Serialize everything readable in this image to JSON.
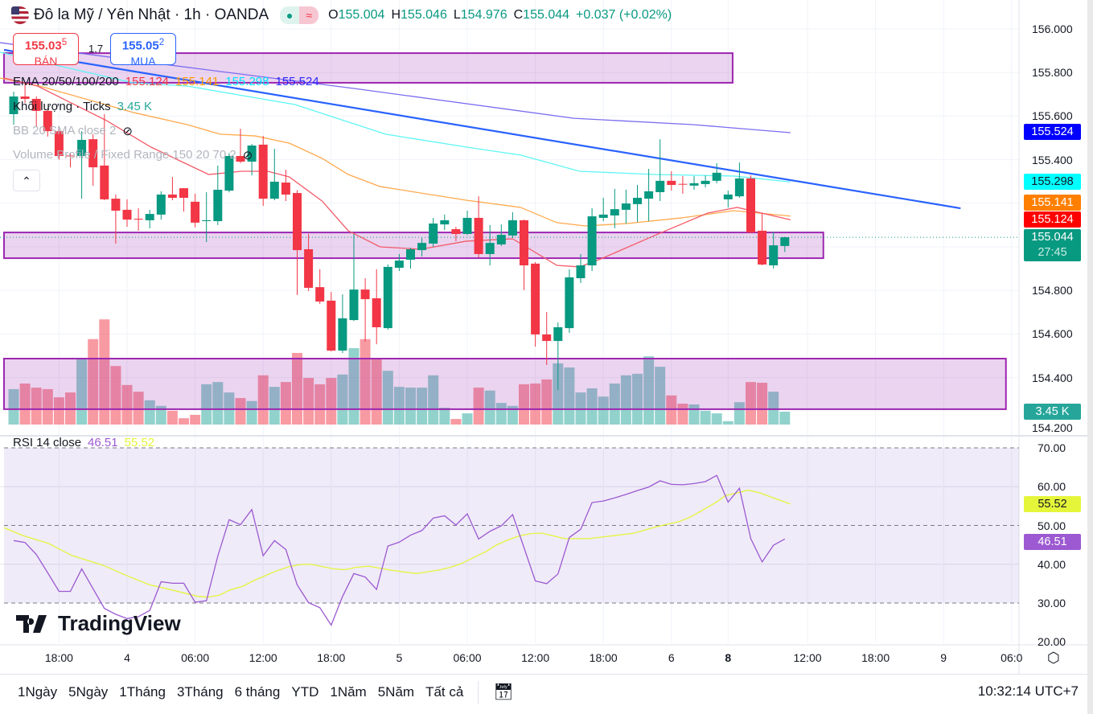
{
  "header": {
    "title": "Đô la Mỹ / Yên Nhật · 1h · OANDA",
    "open_label": "O",
    "open": "155.004",
    "high_label": "H",
    "high": "155.046",
    "low_label": "L",
    "low": "154.976",
    "close_label": "C",
    "close": "155.044",
    "change": "+0.037 (+0.02%)"
  },
  "trade": {
    "sell_price": "155.03",
    "sell_sup": "5",
    "sell_label": "BÁN",
    "spread": "1.7",
    "buy_price": "155.05",
    "buy_sup": "2",
    "buy_label": "MUA"
  },
  "legend": {
    "ema_label": "EMA 20/50/100/200",
    "ema20": "155.124",
    "ema50": "155.141",
    "ema100": "155.298",
    "ema200": "155.524",
    "volume_label": "Khối lượng · Ticks",
    "volume_value": "3.45 K",
    "bb_label": "BB 20 SMA close 2",
    "vp_label": "Volume Profile / Fixed Range 150 20 70 2",
    "rsi_label": "RSI 14 close",
    "rsi_value": "46.51",
    "rsi_ma_value": "55.52"
  },
  "colors": {
    "up": "#089981",
    "down": "#f23645",
    "ema20": "#f23645",
    "ema50": "#ff9800",
    "ema100": "#00ffff",
    "ema200": "#2a2aff",
    "trend": "#2962ff",
    "zone": "#9c27b0",
    "rsi": "#9c59d1",
    "rsi_ma": "#e5f53a"
  },
  "price_axis": {
    "labels": [
      "156.000",
      "155.800",
      "155.600",
      "155.400",
      "154.800",
      "154.600",
      "154.400",
      "154.200"
    ],
    "values": [
      156.0,
      155.8,
      155.6,
      155.4,
      154.8,
      154.6,
      154.4,
      154.2
    ]
  },
  "badges": {
    "ema200": "155.524",
    "ema100": "155.298",
    "ema50": "155.141",
    "ema20": "155.124",
    "last": "155.044",
    "countdown": "27:45",
    "volume": "3.45 K"
  },
  "rsi_axis": {
    "labels": [
      "70.00",
      "60.00",
      "50.00",
      "40.00",
      "30.00",
      "20.00"
    ],
    "badge_ma": "55.52",
    "badge_rsi": "46.51"
  },
  "time_axis": [
    {
      "label": "18:00",
      "i": 4
    },
    {
      "label": "4",
      "i": 10
    },
    {
      "label": "06:00",
      "i": 16
    },
    {
      "label": "12:00",
      "i": 22
    },
    {
      "label": "18:00",
      "i": 28
    },
    {
      "label": "5",
      "i": 34
    },
    {
      "label": "06:00",
      "i": 40
    },
    {
      "label": "12:00",
      "i": 46
    },
    {
      "label": "18:00",
      "i": 52
    },
    {
      "label": "6",
      "i": 58
    },
    {
      "label": "8",
      "i": 63,
      "bold": true
    },
    {
      "label": "12:00",
      "i": 70
    },
    {
      "label": "18:00",
      "i": 76
    },
    {
      "label": "9",
      "i": 82
    },
    {
      "label": "06:0",
      "i": 88
    }
  ],
  "bottom": {
    "ranges": [
      "1Ngày",
      "5Ngày",
      "1Tháng",
      "3Tháng",
      "6 tháng",
      "YTD",
      "1Năm",
      "5Năm",
      "Tất cả"
    ],
    "clock": "10:32:14 UTC+7"
  },
  "logo_text": "TradingView",
  "chart_data": {
    "type": "candlestick",
    "candles": [
      [
        155.609,
        155.712,
        155.561,
        155.69
      ],
      [
        155.69,
        155.75,
        155.66,
        155.679
      ],
      [
        155.679,
        155.69,
        155.553,
        155.624
      ],
      [
        155.624,
        155.63,
        155.506,
        155.531
      ],
      [
        155.531,
        155.54,
        155.4,
        155.417
      ],
      [
        155.419,
        155.43,
        155.365,
        155.417
      ],
      [
        155.417,
        155.531,
        155.221,
        155.491
      ],
      [
        155.494,
        155.517,
        155.28,
        155.365
      ],
      [
        155.373,
        155.609,
        155.214,
        155.218
      ],
      [
        155.221,
        155.24,
        155.015,
        155.166
      ],
      [
        155.17,
        155.218,
        155.092,
        155.125
      ],
      [
        155.129,
        155.177,
        155.074,
        155.125
      ],
      [
        155.122,
        155.17,
        155.085,
        155.151
      ],
      [
        155.148,
        155.255,
        155.125,
        155.24
      ],
      [
        155.24,
        155.321,
        155.214,
        155.225
      ],
      [
        155.269,
        155.27,
        155.162,
        155.225
      ],
      [
        155.207,
        155.244,
        155.089,
        155.111
      ],
      [
        155.118,
        155.251,
        155.022,
        155.122
      ],
      [
        155.118,
        155.373,
        155.1,
        155.262
      ],
      [
        155.258,
        155.43,
        155.25,
        155.417
      ],
      [
        155.417,
        155.542,
        155.384,
        155.391
      ],
      [
        155.391,
        155.472,
        155.328,
        155.465
      ],
      [
        155.469,
        155.509,
        155.188,
        155.221
      ],
      [
        155.221,
        155.45,
        155.214,
        155.299
      ],
      [
        155.295,
        155.354,
        155.21,
        155.24
      ],
      [
        155.247,
        155.26,
        154.779,
        154.985
      ],
      [
        154.989,
        155.059,
        154.797,
        154.812
      ],
      [
        154.815,
        154.897,
        154.738,
        154.749
      ],
      [
        154.753,
        154.793,
        154.52,
        154.524
      ],
      [
        154.524,
        154.782,
        154.513,
        154.672
      ],
      [
        154.664,
        155.059,
        154.66,
        154.804
      ],
      [
        154.804,
        154.856,
        154.565,
        154.76
      ],
      [
        154.764,
        154.897,
        154.553,
        154.631
      ],
      [
        154.627,
        154.919,
        154.62,
        154.908
      ],
      [
        154.904,
        154.967,
        154.889,
        154.937
      ],
      [
        154.941,
        154.996,
        154.9,
        154.989
      ],
      [
        154.985,
        155.041,
        154.956,
        155.018
      ],
      [
        155.015,
        155.133,
        155.0,
        155.107
      ],
      [
        155.103,
        155.148,
        155.077,
        155.122
      ],
      [
        155.081,
        155.092,
        155.026,
        155.059
      ],
      [
        155.059,
        155.166,
        155.055,
        155.133
      ],
      [
        155.133,
        155.232,
        154.952,
        154.967
      ],
      [
        154.967,
        155.1,
        154.915,
        155.018
      ],
      [
        155.011,
        155.103,
        155.004,
        155.055
      ],
      [
        155.052,
        155.159,
        155.041,
        155.122
      ],
      [
        155.122,
        155.125,
        154.801,
        154.915
      ],
      [
        154.923,
        154.93,
        154.542,
        154.598
      ],
      [
        154.598,
        154.701,
        154.458,
        154.568
      ],
      [
        154.568,
        154.653,
        154.343,
        154.631
      ],
      [
        154.627,
        154.897,
        154.605,
        154.86
      ],
      [
        154.856,
        154.967,
        154.834,
        154.915
      ],
      [
        154.915,
        155.177,
        154.889,
        155.14
      ],
      [
        155.133,
        155.225,
        155.118,
        155.148
      ],
      [
        155.144,
        155.266,
        155.085,
        155.173
      ],
      [
        155.17,
        155.262,
        155.107,
        155.199
      ],
      [
        155.196,
        155.284,
        155.114,
        155.225
      ],
      [
        155.221,
        155.358,
        155.118,
        155.255
      ],
      [
        155.251,
        155.494,
        155.21,
        155.303
      ],
      [
        155.303,
        155.347,
        155.258,
        155.284
      ],
      [
        155.289,
        155.325,
        155.244,
        155.287
      ],
      [
        155.281,
        155.325,
        155.262,
        155.292
      ],
      [
        155.288,
        155.328,
        155.273,
        155.303
      ],
      [
        155.303,
        155.384,
        155.292,
        155.34
      ],
      [
        155.218,
        155.258,
        155.181,
        155.24
      ],
      [
        155.232,
        155.387,
        155.225,
        155.314
      ],
      [
        155.314,
        155.328,
        155.063,
        155.066
      ],
      [
        155.074,
        155.155,
        154.915,
        154.919
      ],
      [
        154.915,
        155.07,
        154.9,
        155.007
      ],
      [
        155.004,
        155.046,
        154.976,
        155.044
      ]
    ],
    "volume_k": [
      9.5,
      11.0,
      9.9,
      9.5,
      7.3,
      8.6,
      17.5,
      22.9,
      28.2,
      15.7,
      10.6,
      8.8,
      6.5,
      5.0,
      3.7,
      1.7,
      2.6,
      10.8,
      11.4,
      8.6,
      7.1,
      6.3,
      13.2,
      10.1,
      11.4,
      19.2,
      12.5,
      10.8,
      12.5,
      13.4,
      20.5,
      22.9,
      17.5,
      14.4,
      10.1,
      9.9,
      9.9,
      13.2,
      4.5,
      1.5,
      3.0,
      9.9,
      9.1,
      5.8,
      5.0,
      10.8,
      11.0,
      12.1,
      16.4,
      15.3,
      8.6,
      9.7,
      7.5,
      11.0,
      13.2,
      13.6,
      18.3,
      15.5,
      7.8,
      5.6,
      5.4,
      3.7,
      3.0,
      0.9,
      6.0,
      11.4,
      11.2,
      8.8,
      3.45
    ],
    "ema20": [
      [
        -0.85,
        155.775
      ],
      [
        2.1,
        155.738
      ],
      [
        8.2,
        155.579
      ],
      [
        12.1,
        155.458
      ],
      [
        17.2,
        155.332
      ],
      [
        20.1,
        155.347
      ],
      [
        22.4,
        155.347
      ],
      [
        24.3,
        155.321
      ],
      [
        27.2,
        155.21
      ],
      [
        29.5,
        155.074
      ],
      [
        32.3,
        155.0
      ],
      [
        35.9,
        154.989
      ],
      [
        39.9,
        155.026
      ],
      [
        44,
        155.037
      ],
      [
        47.9,
        154.915
      ],
      [
        49.9,
        154.908
      ],
      [
        51.8,
        154.945
      ],
      [
        56.5,
        155.052
      ],
      [
        61.2,
        155.155
      ],
      [
        63.8,
        155.181
      ],
      [
        68.5,
        155.124
      ]
    ],
    "ema50": [
      [
        -1.2,
        155.775
      ],
      [
        2.3,
        155.738
      ],
      [
        10.6,
        155.616
      ],
      [
        15.3,
        155.561
      ],
      [
        18.2,
        155.517
      ],
      [
        21.3,
        155.509
      ],
      [
        24.3,
        155.476
      ],
      [
        27.2,
        155.406
      ],
      [
        29.5,
        155.332
      ],
      [
        32.3,
        155.277
      ],
      [
        39.9,
        155.214
      ],
      [
        44.7,
        155.181
      ],
      [
        47.9,
        155.111
      ],
      [
        50.4,
        155.096
      ],
      [
        54.1,
        155.107
      ],
      [
        58.9,
        155.133
      ],
      [
        63.5,
        155.166
      ],
      [
        68.5,
        155.141
      ]
    ],
    "ema100": [
      [
        -1.2,
        155.893
      ],
      [
        10.5,
        155.753
      ],
      [
        15.3,
        155.738
      ],
      [
        24.8,
        155.653
      ],
      [
        32.8,
        155.517
      ],
      [
        39.9,
        155.458
      ],
      [
        44.7,
        155.421
      ],
      [
        49.9,
        155.347
      ],
      [
        56.5,
        155.332
      ],
      [
        63.5,
        155.325
      ],
      [
        68.5,
        155.298
      ]
    ],
    "ema200": [
      [
        -1.2,
        155.937
      ],
      [
        14.4,
        155.83
      ],
      [
        30.0,
        155.727
      ],
      [
        49.4,
        155.59
      ],
      [
        59.9,
        155.561
      ],
      [
        68.5,
        155.524
      ]
    ],
    "trendline": [
      [
        -0.85,
        155.904
      ],
      [
        83.5,
        155.177
      ]
    ],
    "zones": [
      {
        "top": 155.889,
        "bottom": 155.753,
        "end": 63.4
      },
      {
        "top": 155.066,
        "bottom": 154.948,
        "end": 71.4
      },
      {
        "top": 154.487,
        "bottom": 154.255,
        "end": 87.5
      }
    ],
    "rsi": [
      46.1,
      45.6,
      42.5,
      37.8,
      33.0,
      33.0,
      38.8,
      33.7,
      28.6,
      27.1,
      26.0,
      26.5,
      28.1,
      35.5,
      35.1,
      35.1,
      30.2,
      30.6,
      42.1,
      51.5,
      50.2,
      54.1,
      42.2,
      46.1,
      43.8,
      34.7,
      30.1,
      28.8,
      24.3,
      31.7,
      37.6,
      36.7,
      33.5,
      44.7,
      45.7,
      47.5,
      48.7,
      51.9,
      52.5,
      50.1,
      53.0,
      46.5,
      48.5,
      49.9,
      52.8,
      44.3,
      35.7,
      35.0,
      37.5,
      46.9,
      49.0,
      55.9,
      56.3,
      57.1,
      58.0,
      59.0,
      59.9,
      61.5,
      60.6,
      60.5,
      60.8,
      61.3,
      62.9,
      56.0,
      59.6,
      46.6,
      40.6,
      44.9,
      46.51
    ],
    "rsi_ma": [
      [
        -0.85,
        49.4
      ],
      [
        0.9,
        47.3
      ],
      [
        3.05,
        45.4
      ],
      [
        5.1,
        42.3
      ],
      [
        8.0,
        39.6
      ],
      [
        10.1,
        36.9
      ],
      [
        12.0,
        34.7
      ],
      [
        14.2,
        33.2
      ],
      [
        16.1,
        31.8
      ],
      [
        17.1,
        31.5
      ],
      [
        18.1,
        32.0
      ],
      [
        19.1,
        33.4
      ],
      [
        20.2,
        34.3
      ],
      [
        21.1,
        35.7
      ],
      [
        23.1,
        38.2
      ],
      [
        24.2,
        39.3
      ],
      [
        25.2,
        39.9
      ],
      [
        26.2,
        40.0
      ],
      [
        28.2,
        38.8
      ],
      [
        29.2,
        38.6
      ],
      [
        30.2,
        39.2
      ],
      [
        31.3,
        39.5
      ],
      [
        33.2,
        38.5
      ],
      [
        35.5,
        37.6
      ],
      [
        37.5,
        38.5
      ],
      [
        38.5,
        39.2
      ],
      [
        39.5,
        40.2
      ],
      [
        40.6,
        41.8
      ],
      [
        41.6,
        43.2
      ],
      [
        42.6,
        45.0
      ],
      [
        43.6,
        46.3
      ],
      [
        44.6,
        47.3
      ],
      [
        45.6,
        47.9
      ],
      [
        46.6,
        48.0
      ],
      [
        47.6,
        47.3
      ],
      [
        48.6,
        46.6
      ],
      [
        50.7,
        46.6
      ],
      [
        52.7,
        47.3
      ],
      [
        54.7,
        48.0
      ],
      [
        56.7,
        49.7
      ],
      [
        58.7,
        51.0
      ],
      [
        59.7,
        52.2
      ],
      [
        61.8,
        55.7
      ],
      [
        62.8,
        57.7
      ],
      [
        64.8,
        59.1
      ],
      [
        65.8,
        58.4
      ],
      [
        66.9,
        57.2
      ],
      [
        68.5,
        55.52
      ]
    ],
    "rsi_levels": [
      70,
      50,
      30
    ],
    "price_range": [
      154.2,
      156.0
    ],
    "rsi_range": [
      20,
      70
    ]
  }
}
